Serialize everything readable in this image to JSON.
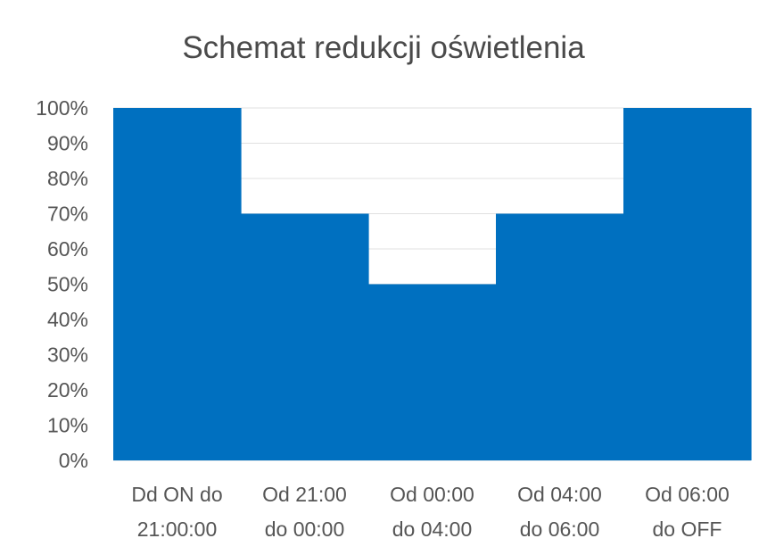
{
  "chart_data": {
    "type": "area",
    "title": "Schemat redukcji oświetlenia",
    "xlabel": "",
    "ylabel": "",
    "categories": [
      [
        "Dd ON do",
        "21:00:00"
      ],
      [
        "Od 21:00",
        "do 00:00"
      ],
      [
        "Od 00:00",
        "do 04:00"
      ],
      [
        "Od 04:00",
        "do 06:00"
      ],
      [
        "Od 06:00",
        "do OFF"
      ]
    ],
    "values": [
      100,
      70,
      50,
      70,
      100
    ],
    "ylim": [
      0,
      100
    ],
    "yticks": [
      "0%",
      "10%",
      "20%",
      "30%",
      "40%",
      "50%",
      "60%",
      "70%",
      "80%",
      "90%",
      "100%"
    ],
    "grid": true,
    "legend": "none",
    "colors": {
      "fill": "#0070c0",
      "grid": "#e0e0e0"
    }
  }
}
